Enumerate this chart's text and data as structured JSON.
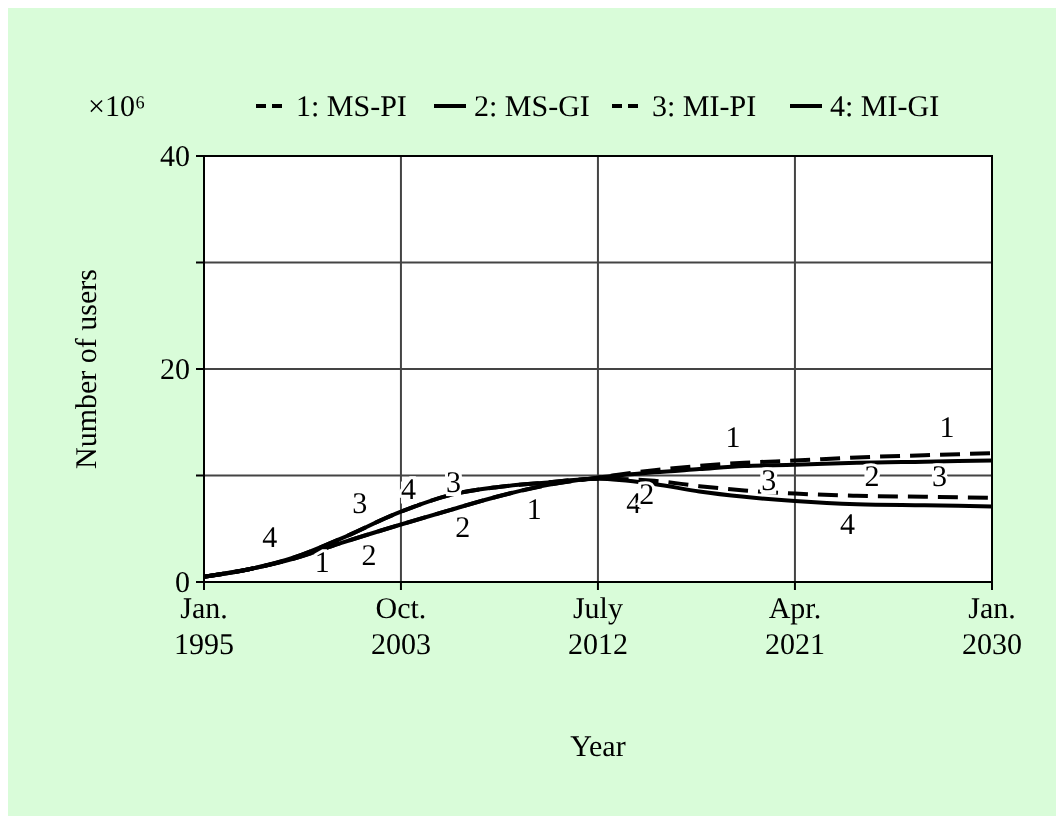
{
  "chart_data": {
    "type": "line",
    "xlabel": "Year",
    "ylabel": "Number of users",
    "xlim": [
      "1995-01",
      "2030-01"
    ],
    "xticks": [
      {
        "value": "1995-01",
        "label": "Jan.\n1995"
      },
      {
        "value": "2003-10",
        "label": "Oct.\n2003"
      },
      {
        "value": "2012-07",
        "label": "July\n2012"
      },
      {
        "value": "2021-04",
        "label": "Apr.\n2021"
      },
      {
        "value": "2030-01",
        "label": "Jan.\n2030"
      }
    ],
    "ylim": [
      0,
      40
    ],
    "yticks": [
      0,
      {
        "value": 10,
        "label": null
      },
      20,
      {
        "value": 30,
        "label": null
      },
      40
    ],
    "grid": true,
    "legend": "top",
    "marker": "none",
    "x": [
      "1995-01",
      "1997-01",
      "1999-01",
      "2001-01",
      "2003-10",
      "2006-01",
      "2008-01",
      "2010-01",
      "2012-07",
      "2015-01",
      "2017-01",
      "2019-01",
      "2021-04",
      "2024-01",
      "2027-01",
      "2030-01"
    ],
    "series": [
      {
        "name": "1: MS-PI",
        "color": "#000000",
        "line_style": "dashed",
        "values": [
          0.5,
          1.2,
          2.2,
          3.6,
          5.4,
          6.8,
          8.0,
          9.0,
          9.8,
          10.5,
          10.9,
          11.2,
          11.4,
          11.7,
          11.9,
          12.1
        ]
      },
      {
        "name": "2: MS-GI",
        "color": "#000000",
        "line_style": "solid",
        "values": [
          0.5,
          1.2,
          2.2,
          3.6,
          5.4,
          6.8,
          8.0,
          9.0,
          9.8,
          10.3,
          10.6,
          10.9,
          11.0,
          11.2,
          11.3,
          11.4
        ]
      },
      {
        "name": "3: MI-PI",
        "color": "#000000",
        "line_style": "dashed",
        "values": [
          0.5,
          1.2,
          2.3,
          4.0,
          6.6,
          8.2,
          8.9,
          9.3,
          9.7,
          9.5,
          9.0,
          8.6,
          8.3,
          8.1,
          8.0,
          7.9
        ]
      },
      {
        "name": "4: MI-GI",
        "color": "#000000",
        "line_style": "solid",
        "values": [
          0.5,
          1.2,
          2.3,
          4.0,
          6.6,
          8.2,
          8.9,
          9.3,
          9.7,
          9.2,
          8.5,
          8.0,
          7.6,
          7.3,
          7.2,
          7.1
        ]
      }
    ],
    "annotations": [
      "×10⁶",
      {
        "text": "4",
        "x": "1997-12",
        "y": 1.7
      },
      {
        "text": "1",
        "x": "2000-04",
        "y": 3.1
      },
      {
        "text": "3",
        "x": "2001-12",
        "y": 4.9
      },
      {
        "text": "2",
        "x": "2002-05",
        "y": 4.5
      },
      {
        "text": "4",
        "x": "2004-02",
        "y": 6.8
      },
      {
        "text": "3",
        "x": "2006-02",
        "y": 8.2
      },
      {
        "text": "2",
        "x": "2006-07",
        "y": 7.1
      },
      {
        "text": "1",
        "x": "2009-09",
        "y": 8.8
      },
      {
        "text": "4",
        "x": "2014-02",
        "y": 9.4
      },
      {
        "text": "2",
        "x": "2014-09",
        "y": 10.2
      },
      {
        "text": "1",
        "x": "2018-07",
        "y": 11.1
      },
      {
        "text": "3",
        "x": "2020-02",
        "y": 8.5
      },
      {
        "text": "4",
        "x": "2023-08",
        "y": 7.4
      },
      {
        "text": "2",
        "x": "2024-09",
        "y": 11.2
      },
      {
        "text": "3",
        "x": "2027-09",
        "y": 8.0
      },
      {
        "text": "1",
        "x": "2028-01",
        "y": 12.0
      }
    ]
  }
}
